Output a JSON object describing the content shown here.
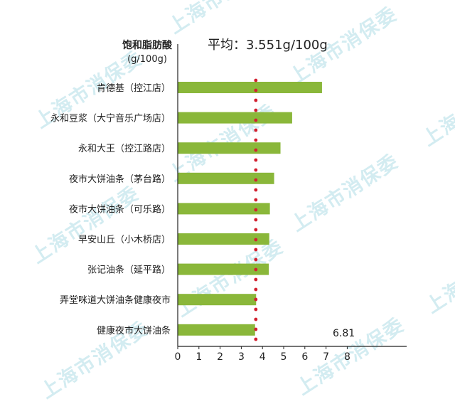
{
  "watermark": "上海市消保委",
  "chart_data": {
    "type": "bar",
    "orientation": "horizontal",
    "title": "平均：3.551g/100g",
    "ylabel_line1": "饱和脂肪酸",
    "ylabel_line2": "(g/100g)",
    "categories": [
      "肯德基（控江店）",
      "永和豆浆（大宁音乐广场店）",
      "永和大王（控江路店）",
      "夜市大饼油条（茅台路）",
      "夜市大饼油条（可乐路）",
      "早安山丘（小木桥店）",
      "张记油条（延平路）",
      "弄堂咪道大饼油条健康夜市",
      "健康夜市大饼油条"
    ],
    "values": [
      6.81,
      5.4,
      4.85,
      4.55,
      4.35,
      4.32,
      4.3,
      3.7,
      3.65
    ],
    "xlim": [
      0,
      8
    ],
    "xticks": [
      "0",
      "1",
      "2",
      "3",
      "4",
      "5",
      "6",
      "7",
      "8"
    ],
    "average": 3.551,
    "annotation": "6.81",
    "grid": false,
    "colors": {
      "bar": "#8ab73a",
      "average_line": "#d2202f",
      "axis": "#222222",
      "text": "#222222"
    }
  }
}
